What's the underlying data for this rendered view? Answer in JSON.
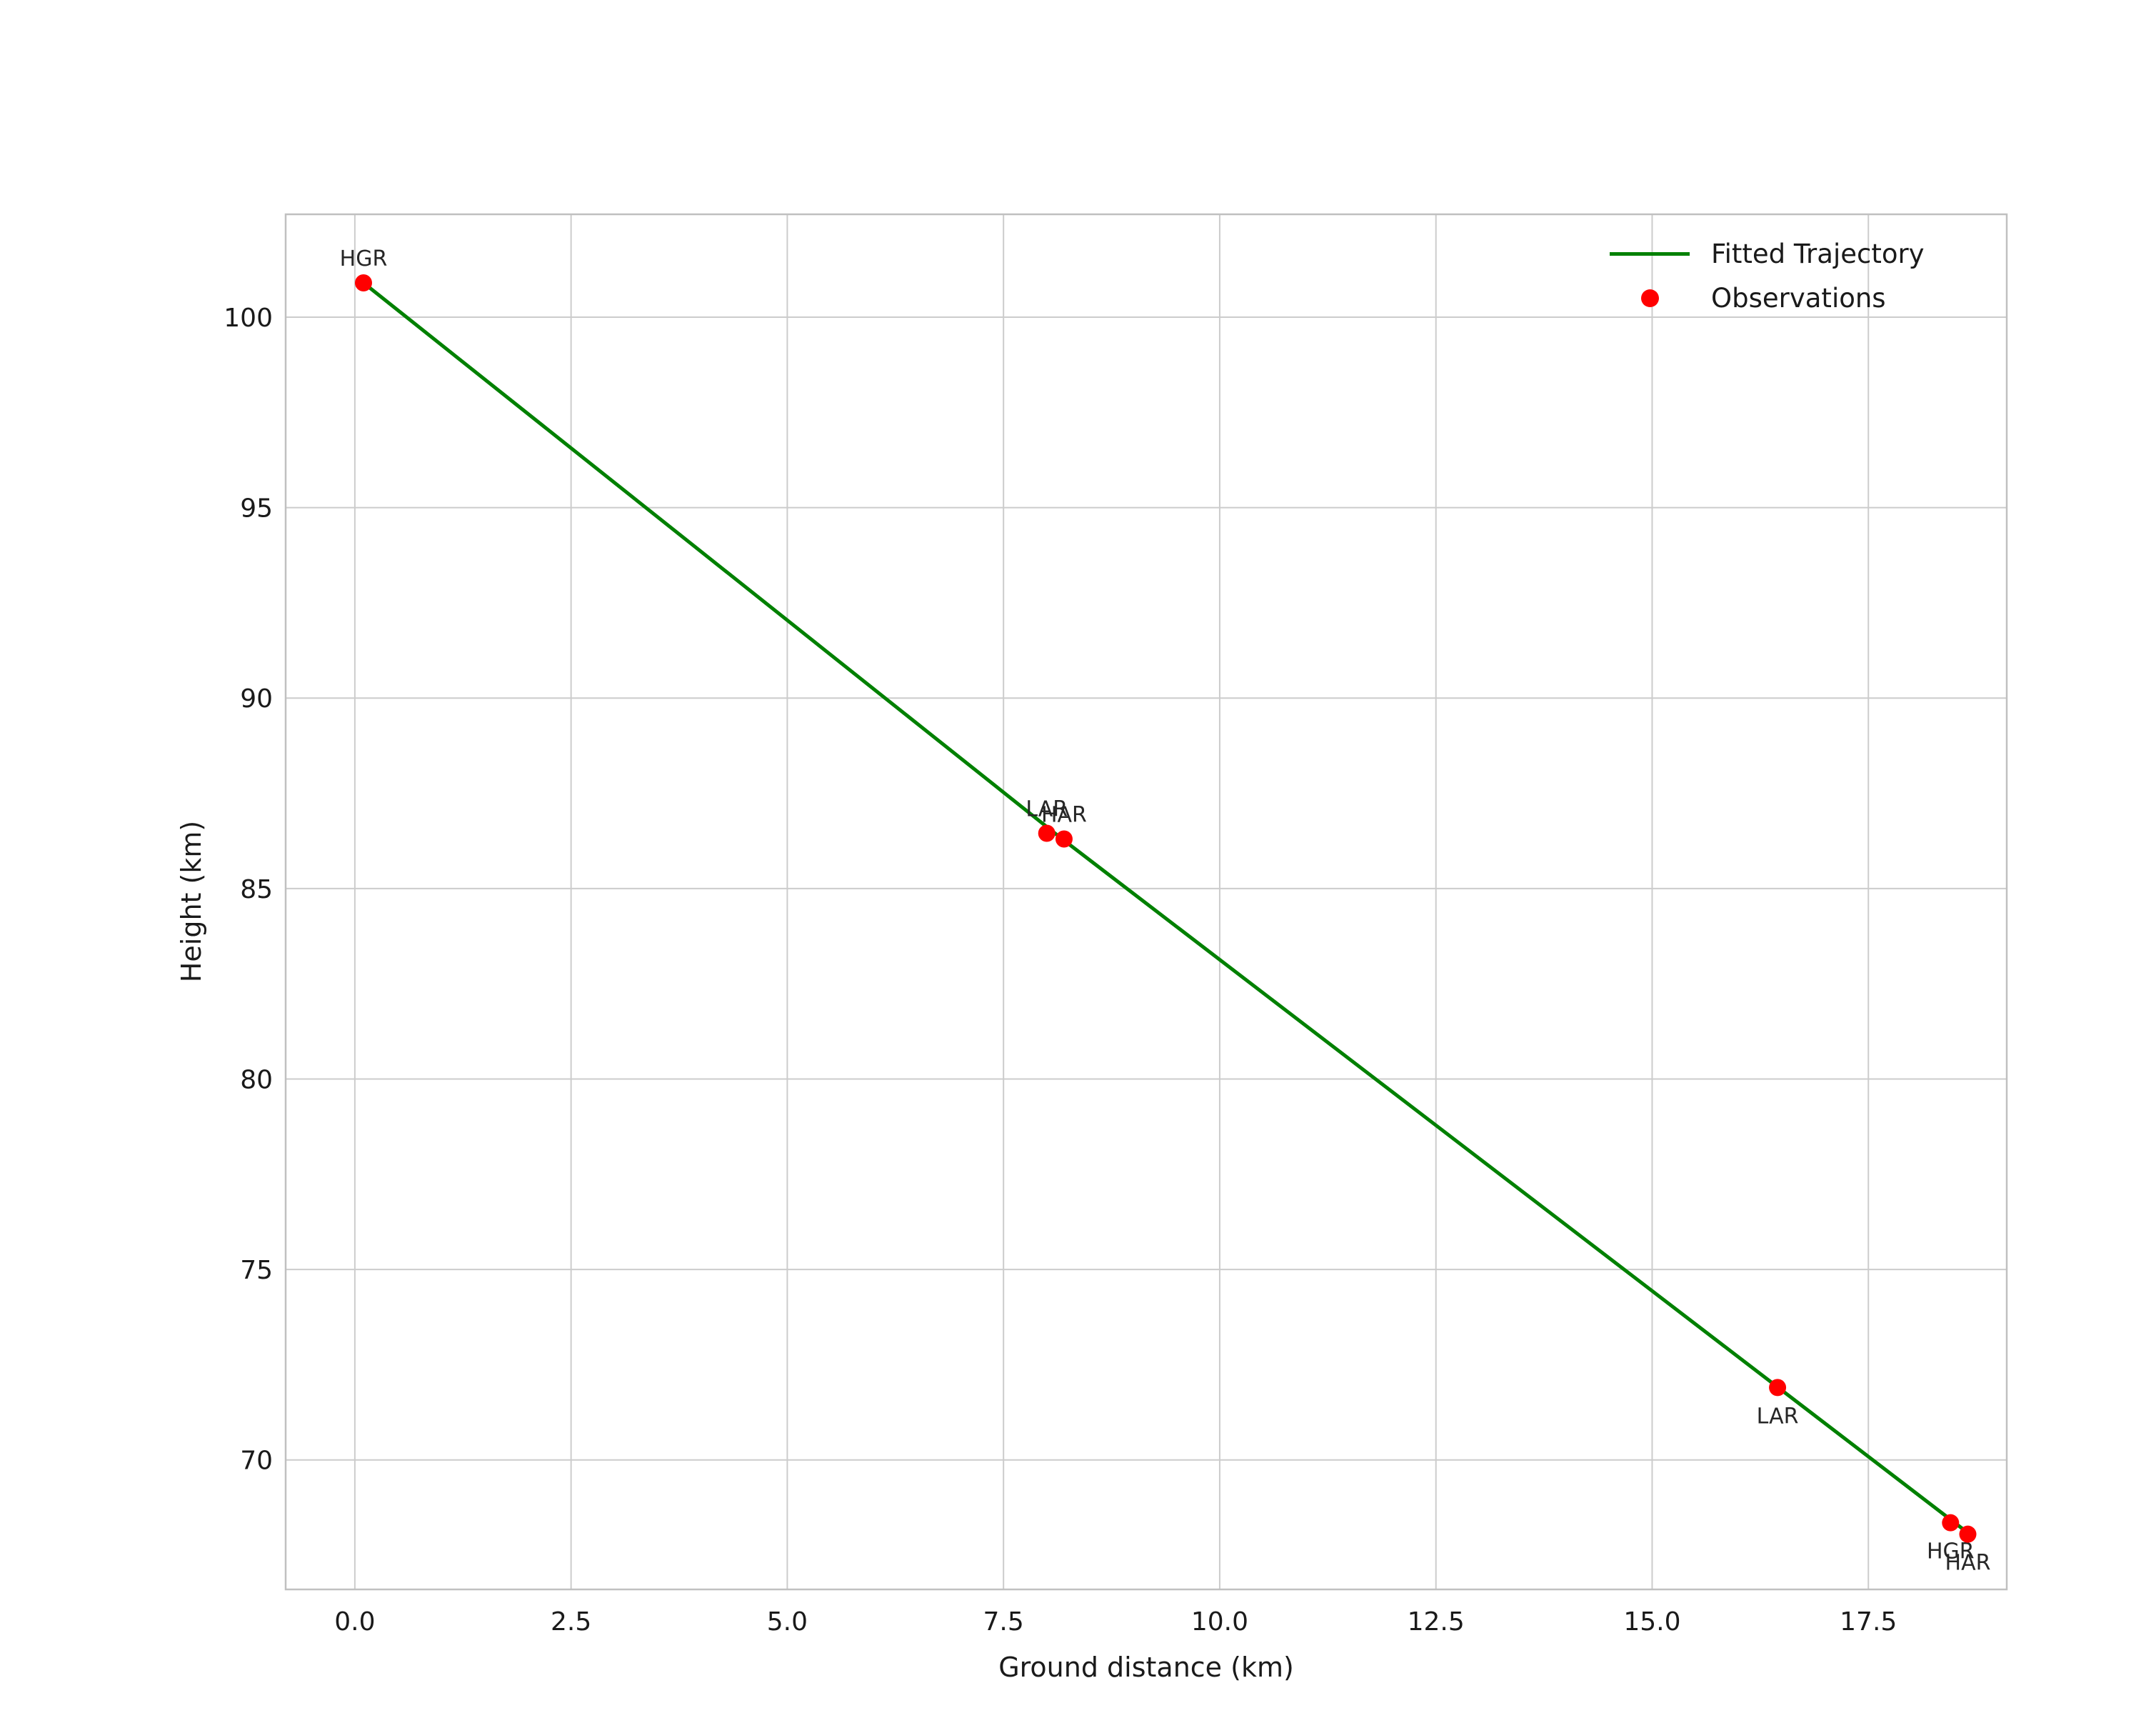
{
  "chart_data": {
    "type": "scatter",
    "title": "",
    "xlabel": "Ground distance (km)",
    "ylabel": "Height (km)",
    "xlim": [
      -0.8,
      19.1
    ],
    "ylim": [
      66.6,
      102.7
    ],
    "grid": true,
    "style": {
      "background": "#ffffff",
      "grid_color": "#cccccc",
      "border_color": "#c0c0c0",
      "tick_color": "#1a1a1a",
      "annotation_color": "#262626"
    },
    "xticks": {
      "values": [
        0.0,
        2.5,
        5.0,
        7.5,
        10.0,
        12.5,
        15.0,
        17.5
      ],
      "labels": [
        "0.0",
        "2.5",
        "5.0",
        "7.5",
        "10.0",
        "12.5",
        "15.0",
        "17.5"
      ]
    },
    "yticks": {
      "values": [
        70,
        75,
        80,
        85,
        90,
        95,
        100
      ],
      "labels": [
        "70",
        "75",
        "80",
        "85",
        "90",
        "95",
        "100"
      ]
    },
    "series": [
      {
        "name": "Fitted Trajectory",
        "kind": "line",
        "color": "#008000",
        "width": 5,
        "x": [
          0.1,
          8.15,
          18.7
        ],
        "y": [
          100.9,
          86.35,
          68.0
        ]
      },
      {
        "name": "Observations",
        "kind": "scatter",
        "color": "#ff0000",
        "radius": 12,
        "points": [
          {
            "x": 0.1,
            "y": 100.9,
            "label": "HGR",
            "label_pos": "above"
          },
          {
            "x": 8.0,
            "y": 86.45,
            "label": "LAR",
            "label_pos": "above"
          },
          {
            "x": 8.2,
            "y": 86.3,
            "label": "HAR",
            "label_pos": "above"
          },
          {
            "x": 16.45,
            "y": 71.9,
            "label": "LAR",
            "label_pos": "below"
          },
          {
            "x": 18.45,
            "y": 68.35,
            "label": "HGR",
            "label_pos": "below"
          },
          {
            "x": 18.65,
            "y": 68.05,
            "label": "HAR",
            "label_pos": "below"
          }
        ]
      }
    ],
    "legend": {
      "position": "upper-right",
      "entries": [
        {
          "label": "Fitted Trajectory",
          "marker": "line",
          "color": "#008000"
        },
        {
          "label": "Observations",
          "marker": "point",
          "color": "#ff0000"
        }
      ]
    }
  }
}
